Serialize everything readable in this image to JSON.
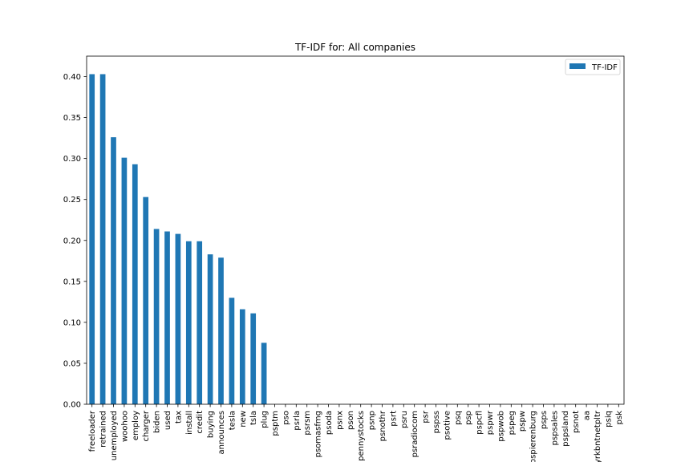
{
  "chart_data": {
    "type": "bar",
    "title": "TF-IDF for: All companies",
    "xlabel": "",
    "ylabel": "",
    "ylim": [
      0,
      0.425
    ],
    "yticks": [
      "0.00",
      "0.05",
      "0.10",
      "0.15",
      "0.20",
      "0.25",
      "0.30",
      "0.35",
      "0.40"
    ],
    "grid": false,
    "legend": "top-right",
    "categories": [
      "freeloader",
      "retrained",
      "unemployed",
      "woohoo",
      "employ",
      "charger",
      "biden",
      "used",
      "tax",
      "install",
      "credit",
      "buying",
      "announces",
      "tesla",
      "new",
      "tsla",
      "plug",
      "psptm",
      "pso",
      "psrla",
      "psrsm",
      "psomasfmg",
      "psoda",
      "psnx",
      "pson",
      "pennystocks",
      "psnp",
      "psnothr",
      "psrt",
      "psru",
      "psradiocom",
      "psr",
      "pspss",
      "psotive",
      "psq",
      "psp",
      "pspcfl",
      "pspwr",
      "pspwob",
      "pspeg",
      "pspw",
      "pspierenburg",
      "psps",
      "pspsales",
      "pspsland",
      "psnot",
      "aa",
      "yrkbntnetpltr",
      "psiq",
      "psk"
    ],
    "series": [
      {
        "name": "TF-IDF",
        "color": "#1f77b4",
        "values": [
          0.403,
          0.403,
          0.326,
          0.301,
          0.293,
          0.253,
          0.214,
          0.211,
          0.208,
          0.199,
          0.199,
          0.183,
          0.179,
          0.13,
          0.116,
          0.111,
          0.075,
          0,
          0,
          0,
          0,
          0,
          0,
          0,
          0,
          0,
          0,
          0,
          0,
          0,
          0,
          0,
          0,
          0,
          0,
          0,
          0,
          0,
          0,
          0,
          0,
          0,
          0,
          0,
          0,
          0,
          0,
          0,
          0,
          0
        ]
      }
    ]
  }
}
